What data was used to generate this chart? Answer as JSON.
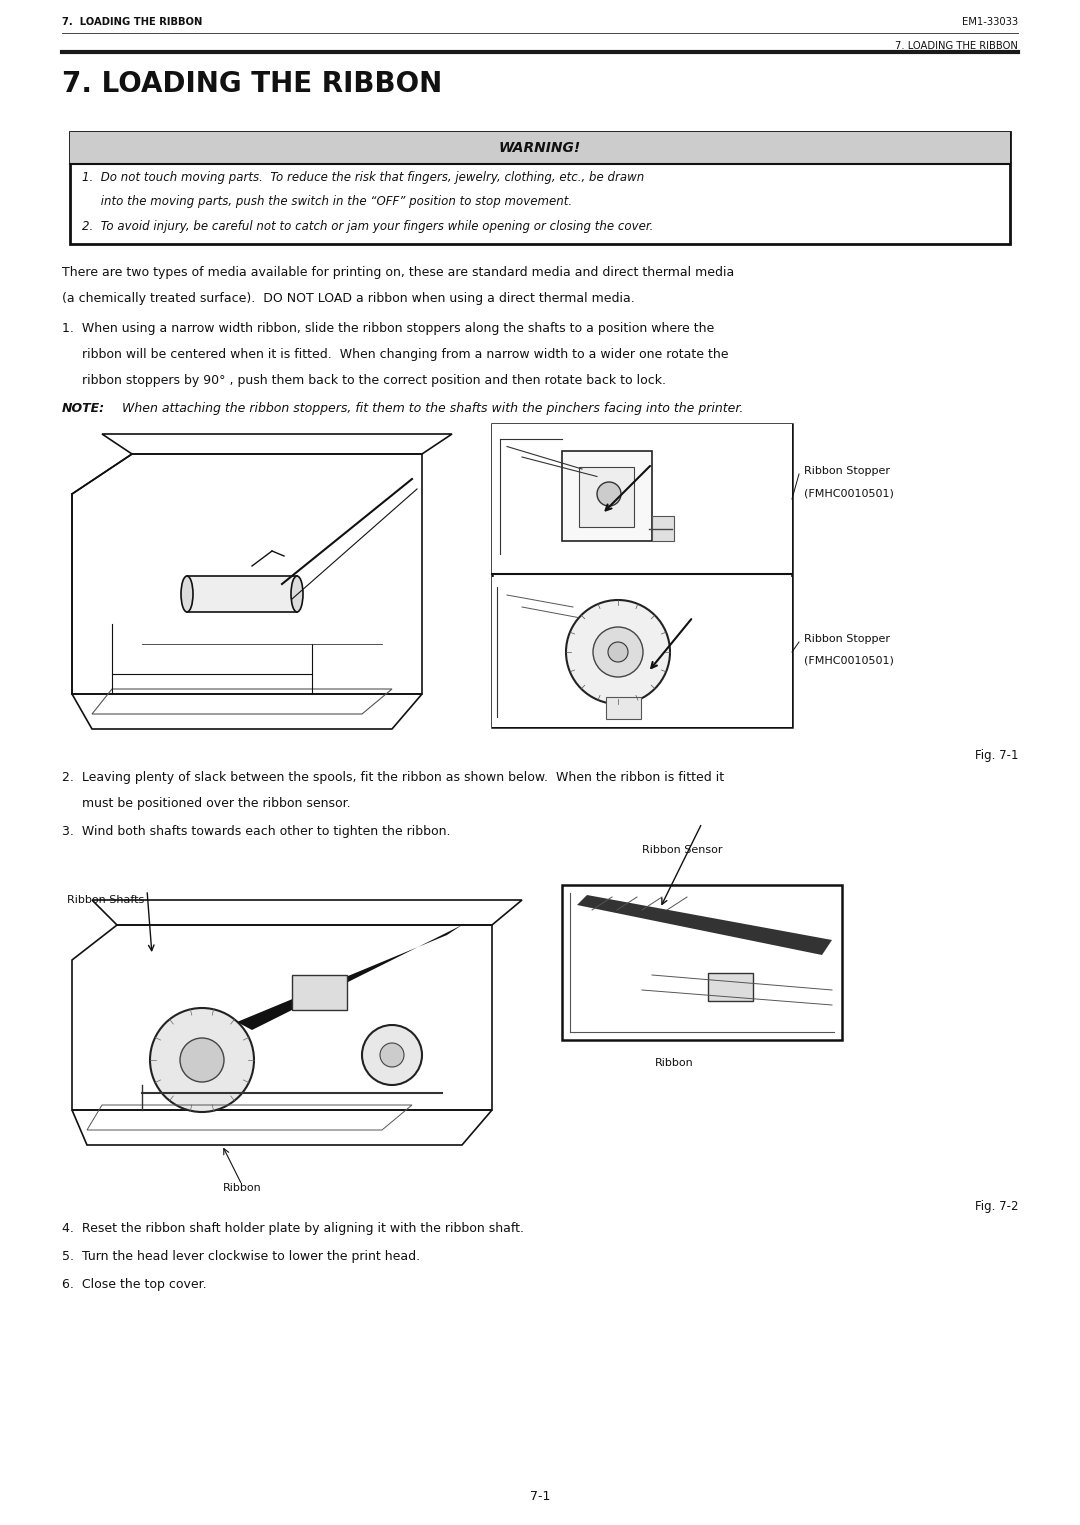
{
  "page_width": 10.8,
  "page_height": 15.25,
  "dpi": 100,
  "bg_color": "#ffffff",
  "text_color": "#111111",
  "header_left": "7.  LOADING THE RIBBON",
  "header_right_top": "EM1-33033",
  "header_right_bottom": "7. LOADING THE RIBBON",
  "title": "7. LOADING THE RIBBON",
  "warning_title": "WARNING!",
  "warn_line1": "1.  Do not touch moving parts.  To reduce the risk that fingers, jewelry, clothing, etc., be drawn",
  "warn_line2": "     into the moving parts, push the switch in the “OFF” position to stop movement.",
  "warn_line3": "2.  To avoid injury, be careful not to catch or jam your fingers while opening or closing the cover.",
  "body_para1_l1": "There are two types of media available for printing on, these are standard media and direct thermal media",
  "body_para1_l2": "(a chemically treated surface).  DO NOT LOAD a ribbon when using a direct thermal media.",
  "item1_l1": "1.  When using a narrow width ribbon, slide the ribbon stoppers along the shafts to a position where the",
  "item1_l2": "     ribbon will be centered when it is fitted.  When changing from a narrow width to a wider one rotate the",
  "item1_l3": "     ribbon stoppers by 90° , push them back to the correct position and then rotate back to lock.",
  "note_bold": "NOTE:",
  "note_italic": "  When attaching the ribbon stoppers, fit them to the shafts with the pinchers facing into the printer.",
  "ribbon_stopper_label1a": "Ribbon Stopper",
  "ribbon_stopper_label1b": "(FMHC0010501)",
  "ribbon_stopper_label2a": "Ribbon Stopper",
  "ribbon_stopper_label2b": "(FMHC0010501)",
  "fig1_label": "Fig. 7-1",
  "item2_l1": "2.  Leaving plenty of slack between the spools, fit the ribbon as shown below.  When the ribbon is fitted it",
  "item2_l2": "     must be positioned over the ribbon sensor.",
  "item3": "3.  Wind both shafts towards each other to tighten the ribbon.",
  "ribbon_shafts_label": "Ribbon Shafts",
  "ribbon_sensor_label": "Ribbon Sensor",
  "ribbon_label_left": "Ribbon",
  "ribbon_label_right": "Ribbon",
  "fig2_label": "Fig. 7-2",
  "item4": "4.  Reset the ribbon shaft holder plate by aligning it with the ribbon shaft.",
  "item5": "5.  Turn the head lever clockwise to lower the print head.",
  "item6": "6.  Close the top cover.",
  "footer": "7-1",
  "ml": 0.62,
  "mr": 0.62,
  "font_body": 9.0,
  "font_header": 7.2,
  "font_title": 20,
  "font_warn_title": 10,
  "font_note": 9.0,
  "font_label": 8.0,
  "font_fig": 8.5,
  "warn_gray": "#cccccc",
  "warn_border": "#222222"
}
